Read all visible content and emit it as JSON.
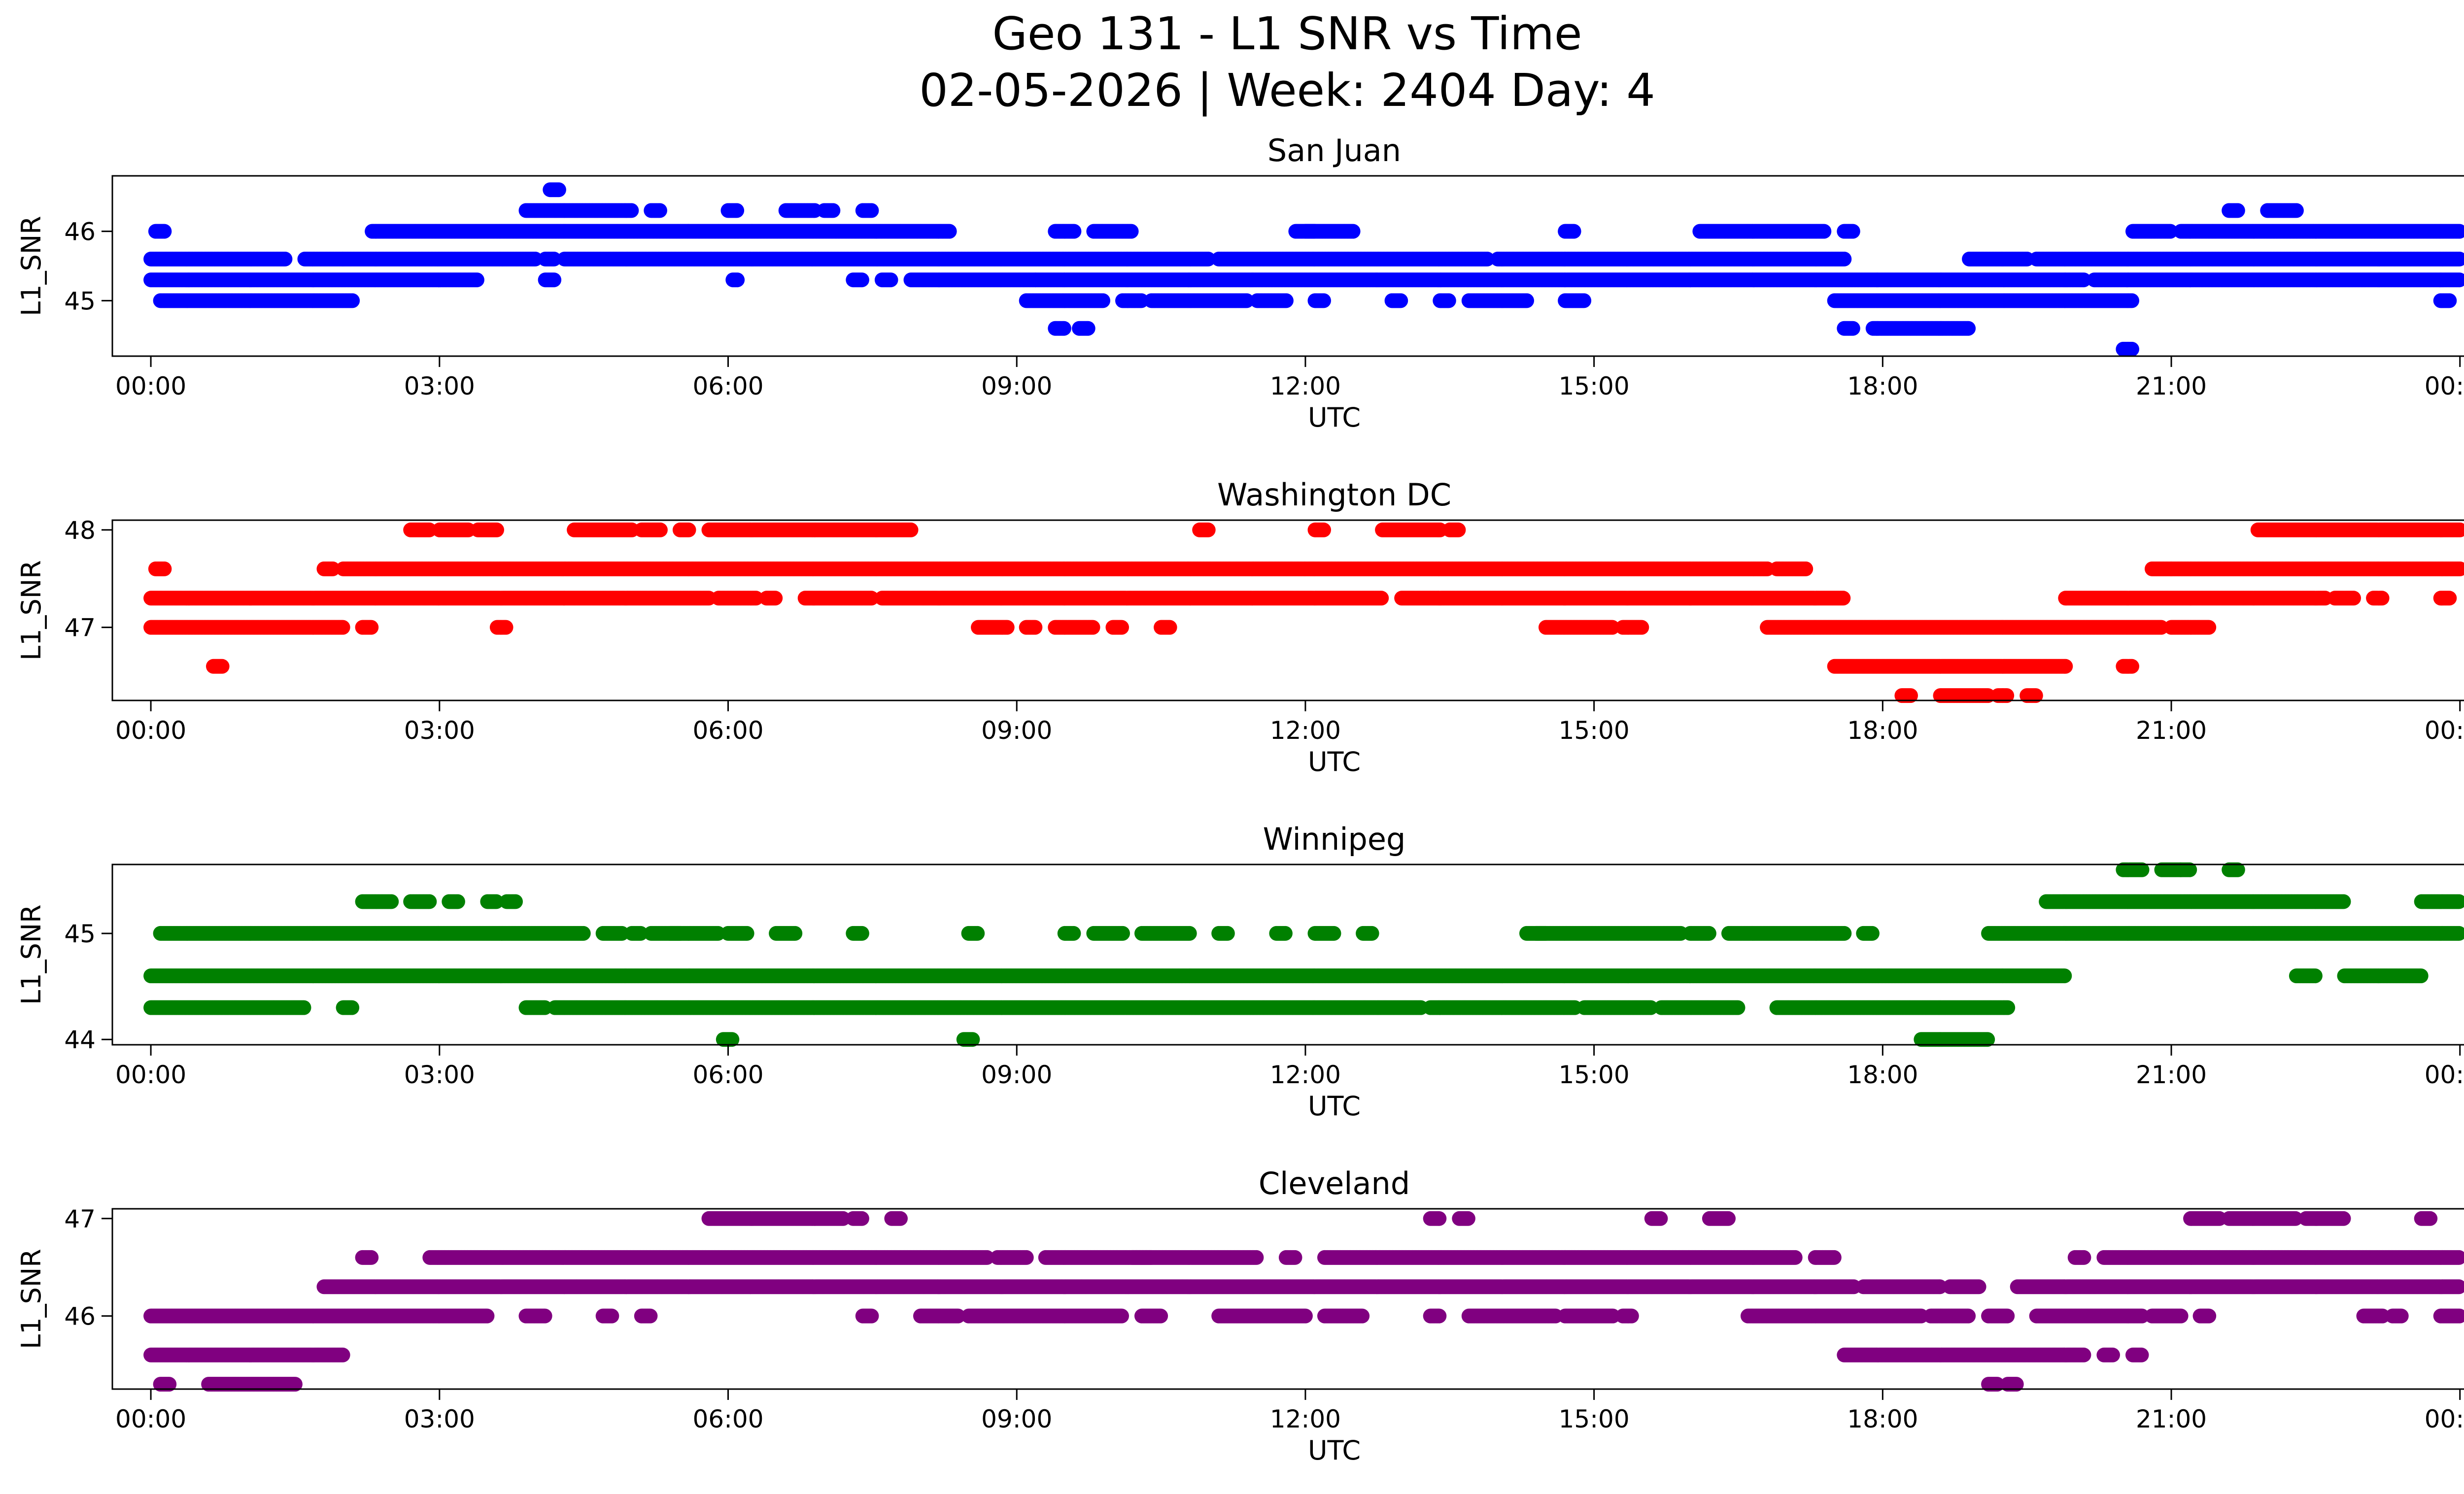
{
  "title_line1": "Geo 131 - L1 SNR vs Time",
  "title_line2": "02-05-2026 | Week: 2404 Day: 4",
  "colors": {
    "san_juan": "#0000ff",
    "washington_dc": "#ff0000",
    "winnipeg": "#008000",
    "cleveland": "#800080",
    "axis": "#000000",
    "background": "#ffffff"
  },
  "chart_data": [
    {
      "type": "scatter",
      "title": "San Juan",
      "xlabel": "UTC",
      "ylabel": "L1_SNR",
      "color_key": "san_juan",
      "xlim": [
        -0.4,
        25.0
      ],
      "ylim": [
        44.2,
        46.8
      ],
      "x_ticks": [
        0,
        3,
        6,
        9,
        12,
        15,
        18,
        21,
        24
      ],
      "x_tick_labels": [
        "00:00",
        "03:00",
        "06:00",
        "09:00",
        "12:00",
        "15:00",
        "18:00",
        "21:00",
        "00:00"
      ],
      "y_ticks": [
        45,
        46
      ],
      "y_tick_labels": [
        "45",
        "46"
      ],
      "levels": [
        {
          "y": 45.3,
          "ranges": [
            [
              0,
              3.4
            ],
            [
              4.1,
              4.2
            ],
            [
              6.05,
              6.1
            ],
            [
              7.3,
              7.4
            ],
            [
              7.6,
              7.7
            ],
            [
              7.9,
              9.2
            ],
            [
              9.2,
              20.1
            ],
            [
              20.2,
              24.0
            ]
          ]
        },
        {
          "y": 45.6,
          "ranges": [
            [
              0,
              1.4
            ],
            [
              1.6,
              2.0
            ],
            [
              2.0,
              4.0
            ],
            [
              4.1,
              4.2
            ],
            [
              4.3,
              11.0
            ],
            [
              11.1,
              13.9
            ],
            [
              14.0,
              17.6
            ],
            [
              18.9,
              19.5
            ],
            [
              19.6,
              24.0
            ]
          ]
        },
        {
          "y": 46.0,
          "ranges": [
            [
              0.05,
              0.15
            ],
            [
              2.3,
              8.3
            ],
            [
              9.4,
              9.6
            ],
            [
              9.8,
              10.2
            ],
            [
              11.9,
              12.1
            ],
            [
              12.0,
              12.5
            ],
            [
              14.7,
              14.8
            ],
            [
              16.1,
              17.4
            ],
            [
              17.6,
              17.7
            ],
            [
              20.6,
              21.0
            ],
            [
              21.1,
              24.0
            ]
          ]
        },
        {
          "y": 46.3,
          "ranges": [
            [
              3.9,
              5.0
            ],
            [
              5.2,
              5.3
            ],
            [
              6.0,
              6.1
            ],
            [
              6.6,
              6.9
            ],
            [
              7.0,
              7.1
            ],
            [
              7.4,
              7.5
            ],
            [
              21.6,
              21.7
            ],
            [
              22.0,
              22.3
            ]
          ]
        },
        {
          "y": 46.6,
          "ranges": [
            [
              4.15,
              4.25
            ]
          ]
        },
        {
          "y": 45.0,
          "ranges": [
            [
              0.1,
              2.1
            ],
            [
              9.1,
              9.9
            ],
            [
              10.1,
              10.3
            ],
            [
              10.4,
              11.4
            ],
            [
              11.5,
              11.8
            ],
            [
              12.1,
              12.2
            ],
            [
              12.9,
              13.0
            ],
            [
              13.4,
              13.5
            ],
            [
              13.7,
              14.3
            ],
            [
              14.7,
              14.9
            ],
            [
              17.5,
              20.6
            ],
            [
              23.8,
              23.9
            ]
          ]
        },
        {
          "y": 44.6,
          "ranges": [
            [
              9.4,
              9.5
            ],
            [
              9.65,
              9.75
            ],
            [
              17.6,
              17.7
            ],
            [
              17.9,
              18.9
            ]
          ]
        },
        {
          "y": 44.3,
          "ranges": [
            [
              20.5,
              20.6
            ]
          ]
        }
      ]
    },
    {
      "type": "scatter",
      "title": "Washington DC",
      "xlabel": "UTC",
      "ylabel": "L1_SNR",
      "color_key": "washington_dc",
      "xlim": [
        -0.4,
        25.0
      ],
      "ylim": [
        46.25,
        48.1
      ],
      "x_ticks": [
        0,
        3,
        6,
        9,
        12,
        15,
        18,
        21,
        24
      ],
      "x_tick_labels": [
        "00:00",
        "03:00",
        "06:00",
        "09:00",
        "12:00",
        "15:00",
        "18:00",
        "21:00",
        "00:00"
      ],
      "y_ticks": [
        47,
        48
      ],
      "y_tick_labels": [
        "47",
        "48"
      ],
      "levels": [
        {
          "y": 48.0,
          "ranges": [
            [
              2.7,
              2.9
            ],
            [
              3.0,
              3.3
            ],
            [
              3.4,
              3.6
            ],
            [
              4.4,
              5.0
            ],
            [
              5.1,
              5.3
            ],
            [
              5.5,
              5.6
            ],
            [
              5.8,
              7.9
            ],
            [
              10.9,
              11.0
            ],
            [
              12.1,
              12.2
            ],
            [
              12.8,
              13.4
            ],
            [
              13.5,
              13.6
            ],
            [
              21.9,
              24.0
            ]
          ]
        },
        {
          "y": 47.6,
          "ranges": [
            [
              0.05,
              0.15
            ],
            [
              1.8,
              1.9
            ],
            [
              2.0,
              12.0
            ],
            [
              12.0,
              16.8
            ],
            [
              16.9,
              17.2
            ],
            [
              20.8,
              21.0
            ],
            [
              21.0,
              24.0
            ]
          ]
        },
        {
          "y": 47.3,
          "ranges": [
            [
              0,
              4.3
            ],
            [
              4.3,
              5.8
            ],
            [
              5.9,
              6.3
            ],
            [
              6.4,
              6.5
            ],
            [
              6.8,
              7.5
            ],
            [
              7.6,
              12.8
            ],
            [
              13.0,
              17.6
            ],
            [
              19.9,
              22.6
            ],
            [
              22.7,
              22.9
            ],
            [
              23.1,
              23.2
            ],
            [
              23.8,
              23.9
            ]
          ]
        },
        {
          "y": 47.0,
          "ranges": [
            [
              0,
              2.0
            ],
            [
              2.2,
              2.3
            ],
            [
              3.6,
              3.7
            ],
            [
              8.6,
              8.9
            ],
            [
              9.1,
              9.2
            ],
            [
              9.4,
              9.8
            ],
            [
              10.0,
              10.1
            ],
            [
              10.5,
              10.6
            ],
            [
              14.5,
              15.2
            ],
            [
              15.3,
              15.5
            ],
            [
              16.8,
              20.9
            ],
            [
              21.0,
              21.4
            ]
          ]
        },
        {
          "y": 46.6,
          "ranges": [
            [
              0.65,
              0.75
            ],
            [
              17.5,
              19.9
            ],
            [
              20.5,
              20.6
            ]
          ]
        },
        {
          "y": 46.3,
          "ranges": [
            [
              18.2,
              18.3
            ],
            [
              18.6,
              19.1
            ],
            [
              19.2,
              19.3
            ],
            [
              19.5,
              19.6
            ]
          ]
        }
      ]
    },
    {
      "type": "scatter",
      "title": "Winnipeg",
      "xlabel": "UTC",
      "ylabel": "L1_SNR",
      "color_key": "winnipeg",
      "xlim": [
        -0.4,
        25.0
      ],
      "ylim": [
        43.95,
        45.65
      ],
      "x_ticks": [
        0,
        3,
        6,
        9,
        12,
        15,
        18,
        21,
        24
      ],
      "x_tick_labels": [
        "00:00",
        "03:00",
        "06:00",
        "09:00",
        "12:00",
        "15:00",
        "18:00",
        "21:00",
        "00:00"
      ],
      "y_ticks": [
        44,
        45
      ],
      "y_tick_labels": [
        "44",
        "45"
      ],
      "levels": [
        {
          "y": 45.6,
          "ranges": [
            [
              20.5,
              20.7
            ],
            [
              20.9,
              21.1
            ],
            [
              21.1,
              21.2
            ],
            [
              21.6,
              21.7
            ]
          ]
        },
        {
          "y": 45.3,
          "ranges": [
            [
              2.2,
              2.5
            ],
            [
              2.7,
              2.9
            ],
            [
              3.1,
              3.2
            ],
            [
              3.5,
              3.6
            ],
            [
              3.7,
              3.8
            ],
            [
              19.7,
              22.8
            ],
            [
              23.6,
              24.0
            ]
          ]
        },
        {
          "y": 45.0,
          "ranges": [
            [
              0.1,
              4.5
            ],
            [
              4.7,
              4.9
            ],
            [
              5.0,
              5.1
            ],
            [
              5.2,
              5.5
            ],
            [
              5.4,
              5.9
            ],
            [
              6.0,
              6.2
            ],
            [
              6.5,
              6.7
            ],
            [
              7.3,
              7.4
            ],
            [
              8.5,
              8.6
            ],
            [
              9.5,
              9.6
            ],
            [
              9.8,
              10.1
            ],
            [
              10.3,
              10.8
            ],
            [
              11.1,
              11.2
            ],
            [
              11.7,
              11.8
            ],
            [
              12.1,
              12.3
            ],
            [
              12.6,
              12.7
            ],
            [
              14.3,
              14.5
            ],
            [
              14.4,
              15.9
            ],
            [
              16.0,
              16.2
            ],
            [
              16.4,
              17.6
            ],
            [
              17.8,
              17.9
            ],
            [
              19.1,
              24.0
            ]
          ]
        },
        {
          "y": 44.6,
          "ranges": [
            [
              0,
              19.9
            ],
            [
              22.3,
              22.5
            ],
            [
              22.8,
              23.6
            ]
          ]
        },
        {
          "y": 44.3,
          "ranges": [
            [
              0,
              1.6
            ],
            [
              2.0,
              2.1
            ],
            [
              3.9,
              4.1
            ],
            [
              4.2,
              13.2
            ],
            [
              13.3,
              14.8
            ],
            [
              14.9,
              15.6
            ],
            [
              15.7,
              16.5
            ],
            [
              16.9,
              19.3
            ]
          ]
        },
        {
          "y": 44.0,
          "ranges": [
            [
              5.95,
              6.05
            ],
            [
              8.45,
              8.55
            ],
            [
              18.4,
              19.1
            ]
          ]
        }
      ]
    },
    {
      "type": "scatter",
      "title": "Cleveland",
      "xlabel": "UTC",
      "ylabel": "L1_SNR",
      "color_key": "cleveland",
      "xlim": [
        -0.4,
        25.0
      ],
      "ylim": [
        45.25,
        47.1
      ],
      "x_ticks": [
        0,
        3,
        6,
        9,
        12,
        15,
        18,
        21,
        24
      ],
      "x_tick_labels": [
        "00:00",
        "03:00",
        "06:00",
        "09:00",
        "12:00",
        "15:00",
        "18:00",
        "21:00",
        "00:00"
      ],
      "y_ticks": [
        46,
        47
      ],
      "y_tick_labels": [
        "46",
        "47"
      ],
      "levels": [
        {
          "y": 47.0,
          "ranges": [
            [
              5.8,
              7.2
            ],
            [
              7.3,
              7.4
            ],
            [
              7.7,
              7.8
            ],
            [
              13.3,
              13.4
            ],
            [
              13.6,
              13.7
            ],
            [
              15.6,
              15.7
            ],
            [
              16.2,
              16.4
            ],
            [
              21.2,
              21.5
            ],
            [
              21.6,
              22.3
            ],
            [
              22.4,
              22.8
            ],
            [
              23.6,
              23.7
            ]
          ]
        },
        {
          "y": 46.6,
          "ranges": [
            [
              2.2,
              2.3
            ],
            [
              2.9,
              8.7
            ],
            [
              8.8,
              9.1
            ],
            [
              9.3,
              10.4
            ],
            [
              10.2,
              11.5
            ],
            [
              11.8,
              11.9
            ],
            [
              12.2,
              17.1
            ],
            [
              17.3,
              17.5
            ],
            [
              20.0,
              20.1
            ],
            [
              20.3,
              24.0
            ]
          ]
        },
        {
          "y": 46.3,
          "ranges": [
            [
              1.8,
              17.7
            ],
            [
              17.8,
              18.6
            ],
            [
              18.7,
              19.0
            ],
            [
              19.4,
              24.0
            ]
          ]
        },
        {
          "y": 46.0,
          "ranges": [
            [
              0,
              3.5
            ],
            [
              3.9,
              4.1
            ],
            [
              4.7,
              4.8
            ],
            [
              5.1,
              5.2
            ],
            [
              7.4,
              7.5
            ],
            [
              8.0,
              8.4
            ],
            [
              8.5,
              10.1
            ],
            [
              10.3,
              10.5
            ],
            [
              11.1,
              12.0
            ],
            [
              12.2,
              12.6
            ],
            [
              13.3,
              13.4
            ],
            [
              13.7,
              14.6
            ],
            [
              14.7,
              15.2
            ],
            [
              15.3,
              15.4
            ],
            [
              16.6,
              18.4
            ],
            [
              18.5,
              18.9
            ],
            [
              19.1,
              19.3
            ],
            [
              19.6,
              20.7
            ],
            [
              20.8,
              21.1
            ],
            [
              21.3,
              21.4
            ],
            [
              23.0,
              23.2
            ],
            [
              23.3,
              23.4
            ],
            [
              23.8,
              24.0
            ]
          ]
        },
        {
          "y": 45.6,
          "ranges": [
            [
              0,
              2.0
            ],
            [
              17.6,
              20.1
            ],
            [
              20.3,
              20.4
            ],
            [
              20.6,
              20.7
            ]
          ]
        },
        {
          "y": 45.3,
          "ranges": [
            [
              0.1,
              0.2
            ],
            [
              0.6,
              1.5
            ],
            [
              19.1,
              19.2
            ],
            [
              19.3,
              19.4
            ]
          ]
        }
      ]
    }
  ]
}
